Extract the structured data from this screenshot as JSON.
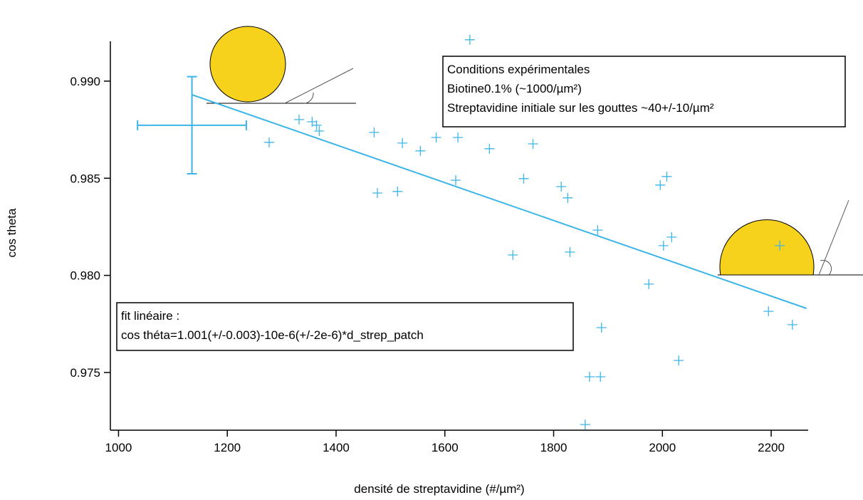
{
  "chart_data": {
    "type": "scatter",
    "xlabel": "densité de streptavidine (#/µm²)",
    "ylabel": "cos theta",
    "xlim": [
      985,
      2268
    ],
    "ylim": [
      0.97203,
      0.99205
    ],
    "xticks": [
      1000,
      1200,
      1400,
      1600,
      1800,
      2000,
      2200
    ],
    "yticks": [
      0.975,
      {
        "value": 0.98,
        "label": "0.980"
      },
      0.985,
      {
        "value": 0.99,
        "label": "0.990"
      }
    ],
    "color": "#3db5e8",
    "x": [
      1277,
      1332,
      1356,
      1364,
      1369,
      1470,
      1476,
      1513,
      1522,
      1555,
      1584,
      1624,
      1620,
      1646,
      1682,
      1725,
      1745,
      1762,
      1814,
      1826,
      1830,
      1881,
      1866,
      1886,
      1888,
      1858,
      1975,
      1996,
      2008,
      2002,
      2017,
      2030,
      2195,
      2216,
      2239
    ],
    "y": [
      0.98685,
      0.98802,
      0.98791,
      0.98773,
      0.98743,
      0.98736,
      0.98424,
      0.98432,
      0.98681,
      0.98641,
      0.9871,
      0.9871,
      0.9849,
      0.99213,
      0.98652,
      0.98105,
      0.98498,
      0.98677,
      0.98457,
      0.98399,
      0.9812,
      0.98233,
      0.97478,
      0.97478,
      0.97731,
      0.97232,
      0.97955,
      0.98465,
      0.98509,
      0.98153,
      0.98197,
      0.97562,
      0.97815,
      0.98153,
      0.97746
    ],
    "error_point": {
      "x": 1135,
      "y": 0.98773,
      "xerr": 100,
      "yerr": 0.0025
    },
    "fit": {
      "x": [
        1135,
        2265
      ],
      "y": [
        0.9893,
        0.9783
      ]
    },
    "annotations": [
      {
        "lines": [
          "Conditions expérimentales",
          "Biotine0.1% (~1000/µm²)",
          "Streptavidine initiale sur les gouttes ~40+/-10/µm²"
        ]
      },
      {
        "lines": [
          "fit linéaire :",
          "cos théta=1.001(+/-0.003)-10e-6(+/-2e-6)*d_strep_patch"
        ]
      }
    ]
  }
}
